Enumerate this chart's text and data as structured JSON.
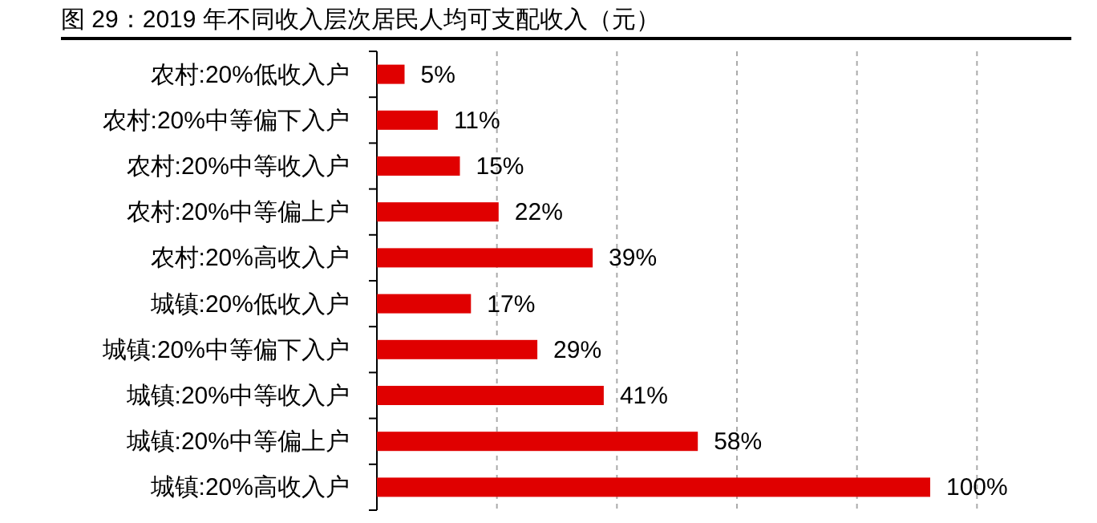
{
  "chart_data": {
    "type": "bar",
    "orientation": "horizontal",
    "title": "图 29：2019 年不同收入层次居民人均可支配收入（元）",
    "categories": [
      "农村:20%低收入户",
      "农村:20%中等偏下入户",
      "农村:20%中等收入户",
      "农村:20%中等偏上户",
      "农村:20%高收入户",
      "城镇:20%低收入户",
      "城镇:20%中等偏下入户",
      "城镇:20%中等收入户",
      "城镇:20%中等偏上户",
      "城镇:20%高收入户"
    ],
    "values": [
      5,
      11,
      15,
      22,
      39,
      17,
      29,
      41,
      58,
      100
    ],
    "value_labels": [
      "5%",
      "11%",
      "15%",
      "22%",
      "39%",
      "17%",
      "29%",
      "41%",
      "58%",
      "100%"
    ],
    "color": "#e00000",
    "grid": "x"
  }
}
